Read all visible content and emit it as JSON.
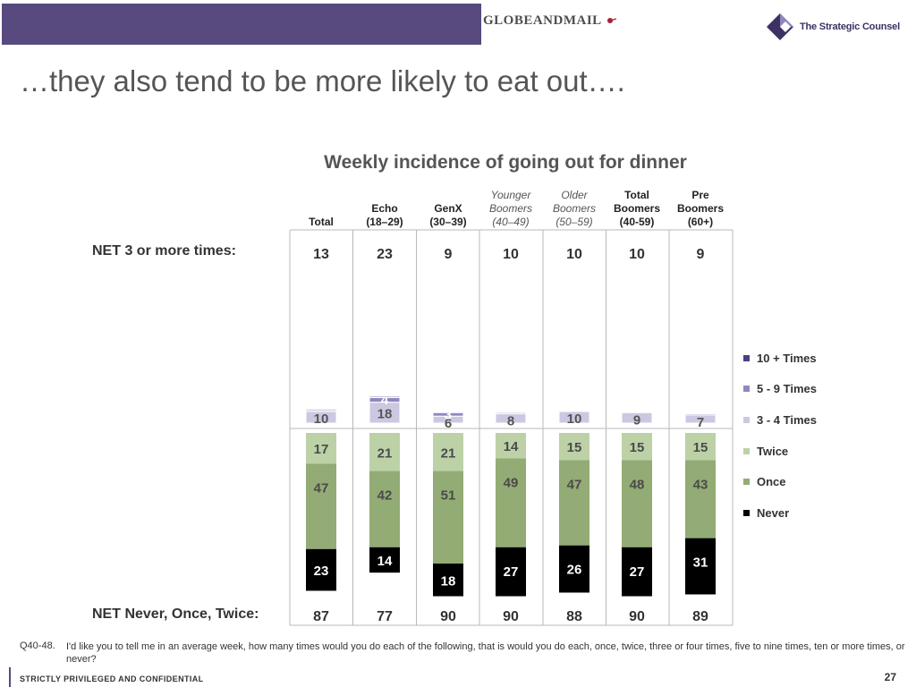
{
  "header": {
    "globe_logo_text": "GLOBEANDMAIL",
    "counsel_logo_text": "The Strategic Counsel"
  },
  "slide_title": "…they also tend to be more likely to eat out….",
  "row_labels": {
    "net_top": "NET 3 or more times:",
    "net_bottom": "NET Never, Once, Twice:"
  },
  "columns": [
    {
      "label": "Total",
      "sub": "",
      "style": "bold"
    },
    {
      "label": "Echo",
      "sub": "(18–29)",
      "style": "bold"
    },
    {
      "label": "GenX",
      "sub": "(30–39)",
      "style": "bold"
    },
    {
      "label": "Younger Boomers",
      "sub": "(40–49)",
      "style": "italic"
    },
    {
      "label": "Older Boomers",
      "sub": "(50–59)",
      "style": "italic"
    },
    {
      "label": "Total Boomers",
      "sub": "(40-59)",
      "style": "bold"
    },
    {
      "label": "Pre Boomers",
      "sub": "(60+)",
      "style": "bold"
    }
  ],
  "colors": {
    "banner": "#58497f",
    "ten_plus": "#4b3e86",
    "five_nine": "#8f88bf",
    "three_four": "#ccc8e2",
    "twice": "#bdd1a7",
    "once": "#93ab74",
    "never": "#000000",
    "divider": "#b8b8b8"
  },
  "chart_data": {
    "type": "bar",
    "title": "Weekly incidence of going out for dinner",
    "stacked": true,
    "categories": [
      "Total",
      "Echo (18–29)",
      "GenX (30–39)",
      "Younger Boomers (40–49)",
      "Older Boomers (50–59)",
      "Total Boomers (40-59)",
      "Pre Boomers (60+)"
    ],
    "net_three_plus": [
      13,
      23,
      9,
      10,
      10,
      10,
      9
    ],
    "net_never_once_twice": [
      87,
      77,
      90,
      90,
      88,
      90,
      89
    ],
    "upper_series": [
      {
        "name": "10 + Times",
        "values": [
          1,
          1,
          0,
          0,
          0,
          0,
          0
        ],
        "labels": [
          "",
          "",
          "",
          "",
          "",
          "",
          ""
        ]
      },
      {
        "name": "5 - 9 Times",
        "values": [
          1,
          4,
          3,
          1,
          0,
          0,
          1
        ],
        "labels": [
          "",
          "4",
          "3",
          "",
          "",
          "",
          ""
        ]
      },
      {
        "name": "3 - 4 Times",
        "values": [
          10,
          18,
          6,
          8,
          10,
          9,
          7
        ],
        "labels": [
          "10",
          "18",
          "6",
          "8",
          "10",
          "9",
          "7"
        ]
      }
    ],
    "lower_series": [
      {
        "name": "Twice",
        "values": [
          17,
          21,
          21,
          14,
          15,
          15,
          15
        ]
      },
      {
        "name": "Once",
        "values": [
          47,
          42,
          51,
          49,
          47,
          48,
          43
        ]
      },
      {
        "name": "Never",
        "values": [
          23,
          14,
          18,
          27,
          26,
          27,
          31
        ]
      }
    ],
    "legend_position": "right"
  },
  "legend": [
    {
      "label": "10 + Times",
      "color": "#4b3e86"
    },
    {
      "label": "5 - 9 Times",
      "color": "#8f88bf"
    },
    {
      "label": "3 - 4 Times",
      "color": "#ccc8e2"
    },
    {
      "label": "Twice",
      "color": "#bdd1a7"
    },
    {
      "label": "Once",
      "color": "#93ab74"
    },
    {
      "label": "Never",
      "color": "#000000"
    }
  ],
  "footnote": {
    "code": "Q40-48.",
    "text": "I'd like you to tell me in an average week, how many times would you do each of the following, that is would you do each, once, twice, three or four times, five to nine times, ten or more times, or never?"
  },
  "footer": {
    "confidential": "STRICTLY PRIVILEGED AND CONFIDENTIAL",
    "page_number": "27"
  }
}
